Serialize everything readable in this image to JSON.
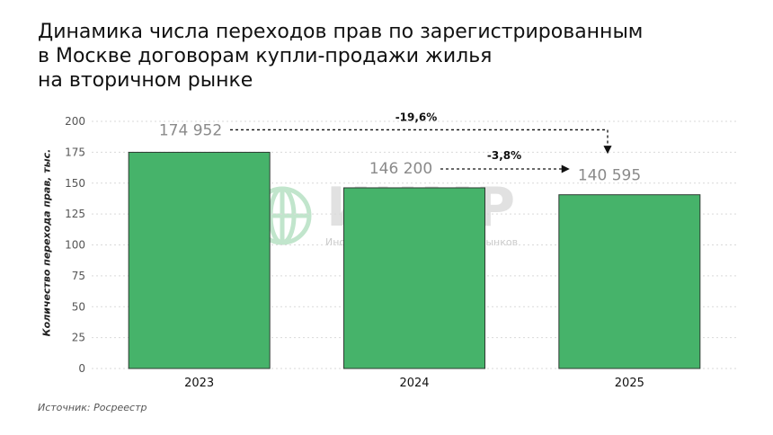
{
  "header": {
    "title_lines": [
      "Динамика числа переходов прав по зарегистрированным",
      "в Москве договорам купли-продажи жилья",
      "на вторичном рынке"
    ]
  },
  "watermark": {
    "name": "ИИМР",
    "subtitle": "Институт Изучения Мировых Рынков",
    "icon": "globe-icon"
  },
  "footer": {
    "source": "Источник: Росреестр"
  },
  "colors": {
    "bar": "#46b36a",
    "bar_edge": "#2f3b33",
    "grid": "#d9d9d9",
    "value_label": "#8a8a8a",
    "arrow": "#111111"
  },
  "chart_data": {
    "type": "bar",
    "categories": [
      "2023",
      "2024",
      "2025"
    ],
    "values": [
      174.952,
      146.2,
      140.595
    ],
    "value_labels": [
      "174 952",
      "146 200",
      "140 595"
    ],
    "ylabel": "Количество перехода прав, тыс.",
    "ylim": [
      0,
      200
    ],
    "yticks": [
      0,
      25,
      50,
      75,
      100,
      125,
      150,
      175,
      200
    ],
    "grid": true,
    "annotations": [
      {
        "label": "-19,6%",
        "from": "2023",
        "to": "2025"
      },
      {
        "label": "-3,8%",
        "from": "2024",
        "to": "2025"
      }
    ]
  }
}
